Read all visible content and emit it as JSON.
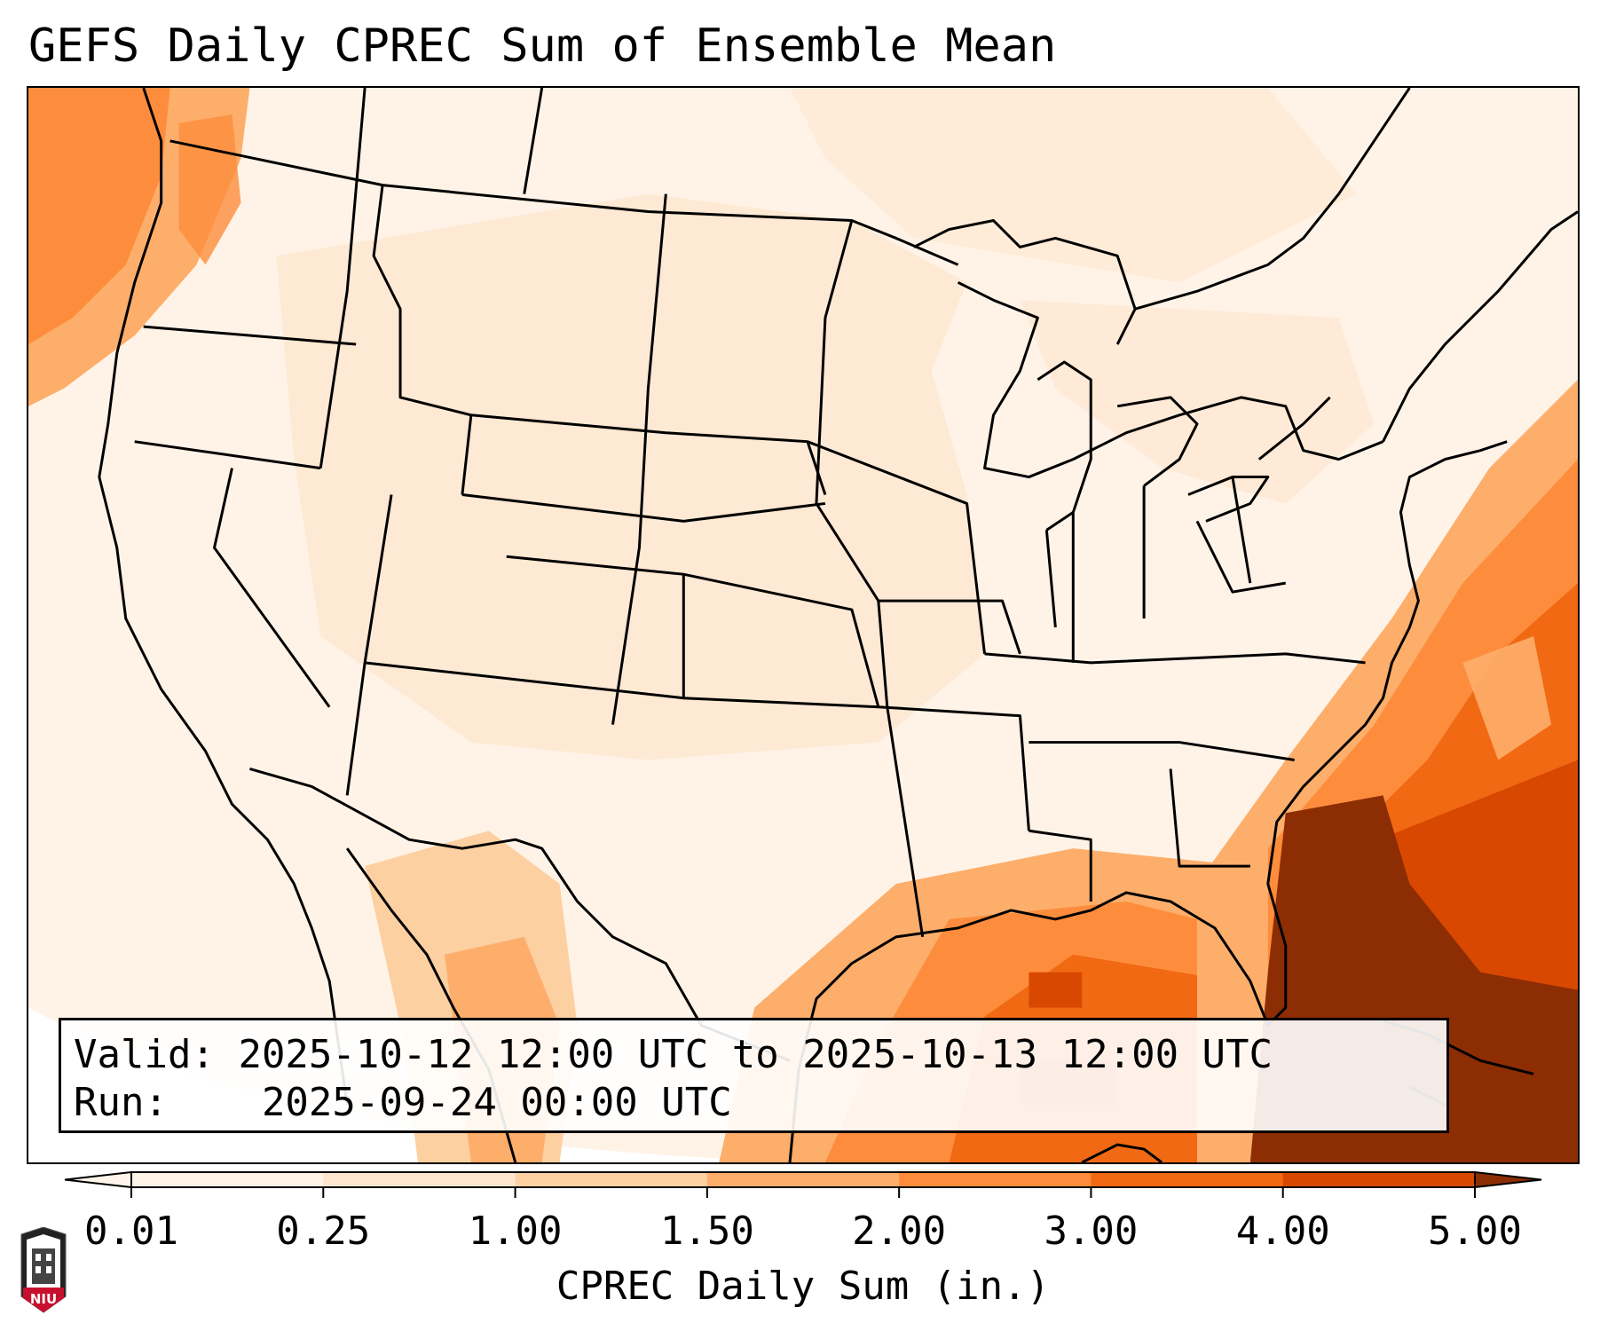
{
  "title": "GEFS Daily CPREC Sum of Ensemble Mean",
  "info": {
    "valid_label": "Valid:",
    "valid_value": "2025-10-12 12:00 UTC to 2025-10-13 12:00 UTC",
    "run_label": "Run:",
    "run_value": "2025-09-24 00:00 UTC"
  },
  "colorbar": {
    "label": "CPREC Daily Sum (in.)",
    "ticks": [
      "0.01",
      "0.25",
      "1.00",
      "1.50",
      "2.00",
      "3.00",
      "4.00",
      "5.00"
    ],
    "colors": [
      "#fff3e7",
      "#fee6ce",
      "#fdd0a2",
      "#fdae6b",
      "#fd8d3c",
      "#f16913",
      "#d94801"
    ],
    "under_color": "#fff5eb",
    "over_color": "#8c2d04",
    "extend": "both"
  },
  "logo": {
    "text": "NIU",
    "shield_color": "#c8102e",
    "tower_color": "#222222"
  }
}
